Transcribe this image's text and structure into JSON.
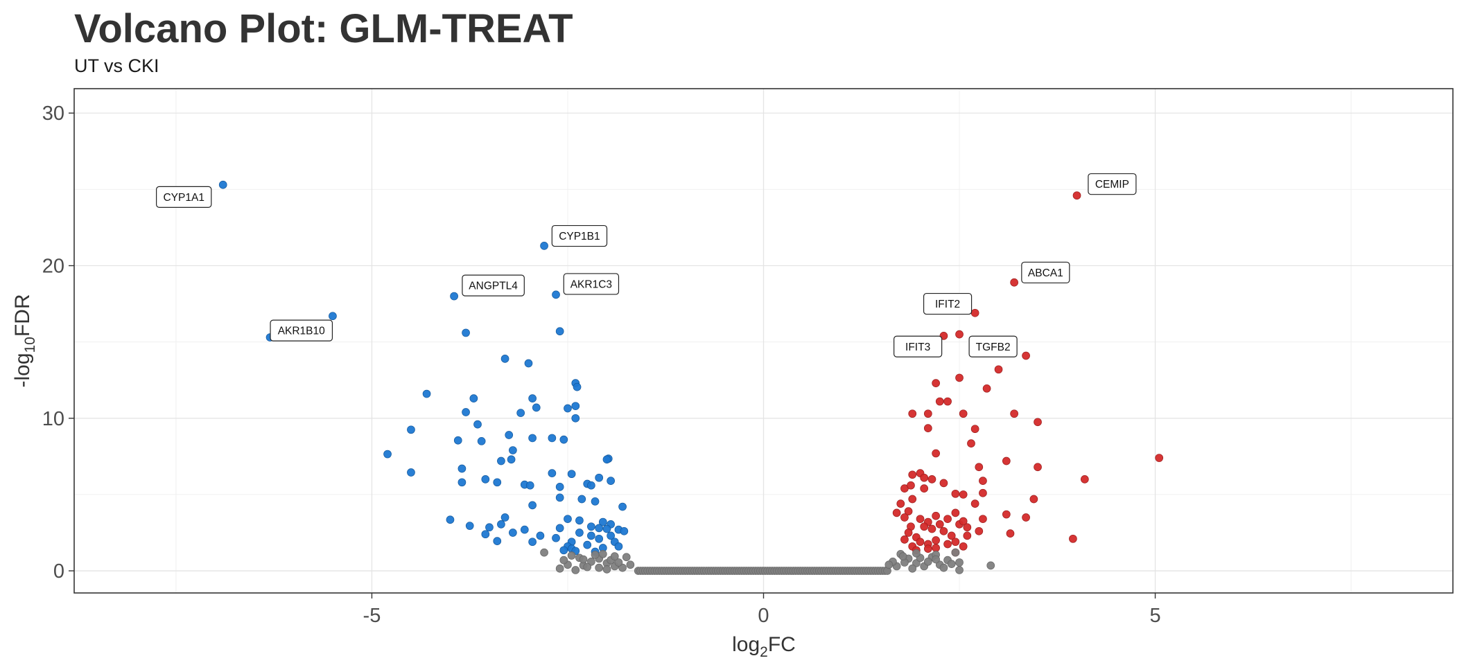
{
  "chart_data": {
    "type": "scatter",
    "title": "Volcano Plot: GLM-TREAT",
    "subtitle": "UT vs CKI",
    "xlabel_main": "log",
    "xlabel_sub": "2",
    "xlabel_tail": "FC",
    "ylabel_pre": "-log",
    "ylabel_sub": "10",
    "ylabel_tail": "FDR",
    "xlim": [
      -8.8,
      8.8
    ],
    "ylim": [
      -1.45,
      31.6
    ],
    "x_ticks": [
      -5,
      0,
      5
    ],
    "y_ticks": [
      0,
      10,
      20,
      30
    ],
    "grid": true,
    "legend": "none",
    "colors": {
      "down": "#1e78d2",
      "up": "#d42a2a",
      "ns": "#808080"
    },
    "series": [
      {
        "group": "down",
        "points": [
          [
            -6.9,
            25.3
          ],
          [
            -5.5,
            16.7
          ],
          [
            -6.3,
            15.3
          ],
          [
            -2.8,
            21.3
          ],
          [
            -2.65,
            18.1
          ],
          [
            -3.95,
            18.0
          ],
          [
            -2.6,
            15.7
          ],
          [
            -3.8,
            15.6
          ],
          [
            -3.3,
            13.9
          ],
          [
            -3.0,
            13.6
          ],
          [
            -2.4,
            12.3
          ],
          [
            -2.38,
            12.05
          ],
          [
            -4.3,
            11.6
          ],
          [
            -3.7,
            11.3
          ],
          [
            -2.95,
            11.3
          ],
          [
            -2.5,
            10.65
          ],
          [
            -3.8,
            10.4
          ],
          [
            -3.1,
            10.35
          ],
          [
            -2.9,
            10.7
          ],
          [
            -2.4,
            10.8
          ],
          [
            -3.65,
            9.6
          ],
          [
            -2.4,
            10.0
          ],
          [
            -4.5,
            9.25
          ],
          [
            -3.25,
            8.9
          ],
          [
            -2.95,
            8.7
          ],
          [
            -2.7,
            8.7
          ],
          [
            -2.55,
            8.6
          ],
          [
            -3.9,
            8.55
          ],
          [
            -3.6,
            8.5
          ],
          [
            -3.2,
            7.9
          ],
          [
            -4.8,
            7.65
          ],
          [
            -3.35,
            7.2
          ],
          [
            -3.22,
            7.3
          ],
          [
            -1.98,
            7.35
          ],
          [
            -2.0,
            7.3
          ],
          [
            -3.85,
            6.7
          ],
          [
            -4.5,
            6.45
          ],
          [
            -2.7,
            6.4
          ],
          [
            -2.45,
            6.35
          ],
          [
            -2.1,
            6.1
          ],
          [
            -3.55,
            6.0
          ],
          [
            -3.4,
            5.8
          ],
          [
            -3.85,
            5.8
          ],
          [
            -1.95,
            5.9
          ],
          [
            -3.05,
            5.65
          ],
          [
            -2.98,
            5.6
          ],
          [
            -2.6,
            5.5
          ],
          [
            -2.25,
            5.7
          ],
          [
            -2.2,
            5.6
          ],
          [
            -2.6,
            4.8
          ],
          [
            -2.32,
            4.7
          ],
          [
            -2.15,
            4.55
          ],
          [
            -1.8,
            4.2
          ],
          [
            -2.95,
            4.3
          ],
          [
            -3.3,
            3.5
          ],
          [
            -4.0,
            3.35
          ],
          [
            -2.5,
            3.4
          ],
          [
            -2.35,
            3.3
          ],
          [
            -2.05,
            3.2
          ],
          [
            -1.95,
            3.05
          ],
          [
            -3.35,
            3.05
          ],
          [
            -3.5,
            2.85
          ],
          [
            -3.75,
            2.95
          ],
          [
            -2.6,
            2.8
          ],
          [
            -2.2,
            2.9
          ],
          [
            -2.1,
            2.8
          ],
          [
            -2.0,
            2.75
          ],
          [
            -1.85,
            2.7
          ],
          [
            -1.78,
            2.6
          ],
          [
            -1.95,
            2.3
          ],
          [
            -2.35,
            2.5
          ],
          [
            -2.2,
            2.3
          ],
          [
            -3.2,
            2.5
          ],
          [
            -3.05,
            2.7
          ],
          [
            -2.85,
            2.3
          ],
          [
            -3.55,
            2.4
          ],
          [
            -2.65,
            2.15
          ],
          [
            -2.1,
            2.1
          ],
          [
            -1.9,
            1.9
          ],
          [
            -2.45,
            1.9
          ],
          [
            -2.25,
            1.7
          ],
          [
            -3.4,
            1.95
          ],
          [
            -2.95,
            1.9
          ],
          [
            -2.5,
            1.6
          ],
          [
            -2.05,
            1.5
          ],
          [
            -2.45,
            1.45
          ],
          [
            -1.85,
            1.6
          ],
          [
            -2.4,
            1.3
          ],
          [
            -2.55,
            1.35
          ],
          [
            -2.15,
            1.25
          ]
        ]
      },
      {
        "group": "up",
        "points": [
          [
            4.0,
            24.6
          ],
          [
            3.2,
            18.9
          ],
          [
            2.7,
            16.9
          ],
          [
            2.3,
            15.4
          ],
          [
            2.5,
            15.5
          ],
          [
            3.35,
            14.1
          ],
          [
            3.0,
            13.2
          ],
          [
            2.5,
            12.65
          ],
          [
            2.2,
            12.3
          ],
          [
            2.85,
            11.95
          ],
          [
            2.25,
            11.1
          ],
          [
            2.35,
            11.1
          ],
          [
            2.55,
            10.3
          ],
          [
            1.9,
            10.3
          ],
          [
            2.1,
            10.3
          ],
          [
            3.2,
            10.3
          ],
          [
            3.5,
            9.75
          ],
          [
            2.1,
            9.35
          ],
          [
            2.7,
            9.3
          ],
          [
            2.65,
            8.35
          ],
          [
            2.2,
            7.7
          ],
          [
            2.75,
            6.8
          ],
          [
            3.1,
            7.2
          ],
          [
            3.5,
            6.8
          ],
          [
            5.05,
            7.4
          ],
          [
            4.1,
            6.0
          ],
          [
            2.0,
            6.4
          ],
          [
            1.9,
            6.3
          ],
          [
            2.05,
            6.1
          ],
          [
            2.15,
            6.0
          ],
          [
            1.8,
            5.4
          ],
          [
            1.88,
            5.6
          ],
          [
            2.3,
            5.75
          ],
          [
            2.05,
            5.4
          ],
          [
            2.8,
            5.9
          ],
          [
            2.45,
            5.05
          ],
          [
            2.55,
            5.0
          ],
          [
            2.8,
            5.1
          ],
          [
            3.45,
            4.7
          ],
          [
            1.75,
            4.4
          ],
          [
            1.9,
            4.7
          ],
          [
            2.7,
            4.4
          ],
          [
            1.7,
            3.8
          ],
          [
            1.85,
            3.9
          ],
          [
            2.45,
            3.8
          ],
          [
            2.2,
            3.6
          ],
          [
            3.1,
            3.7
          ],
          [
            1.8,
            3.5
          ],
          [
            2.0,
            3.4
          ],
          [
            2.35,
            3.4
          ],
          [
            2.8,
            3.4
          ],
          [
            3.35,
            3.5
          ],
          [
            2.1,
            3.2
          ],
          [
            2.25,
            3.05
          ],
          [
            2.5,
            3.05
          ],
          [
            2.55,
            3.25
          ],
          [
            1.88,
            2.9
          ],
          [
            2.05,
            2.9
          ],
          [
            2.15,
            2.75
          ],
          [
            2.6,
            2.85
          ],
          [
            1.85,
            2.5
          ],
          [
            2.3,
            2.6
          ],
          [
            2.75,
            2.6
          ],
          [
            1.95,
            2.2
          ],
          [
            2.4,
            2.3
          ],
          [
            2.6,
            2.3
          ],
          [
            3.15,
            2.45
          ],
          [
            3.95,
            2.1
          ],
          [
            1.8,
            2.05
          ],
          [
            2.0,
            1.9
          ],
          [
            2.2,
            2.0
          ],
          [
            2.45,
            1.9
          ],
          [
            2.1,
            1.75
          ],
          [
            2.35,
            1.75
          ],
          [
            1.9,
            1.6
          ],
          [
            2.55,
            1.6
          ],
          [
            2.2,
            1.5
          ],
          [
            1.95,
            1.35
          ],
          [
            2.1,
            1.45
          ],
          [
            2.45,
            1.2
          ]
        ]
      },
      {
        "group": "ns",
        "points": [
          [
            -2.8,
            1.2
          ],
          [
            -2.5,
            0.4
          ],
          [
            -2.3,
            0.35
          ],
          [
            -2.1,
            0.8
          ],
          [
            -2.0,
            0.5
          ],
          [
            -1.9,
            0.3
          ],
          [
            -2.35,
            0.85
          ],
          [
            -2.2,
            0.6
          ],
          [
            -1.8,
            0.2
          ],
          [
            -2.6,
            0.15
          ],
          [
            -1.75,
            0.9
          ],
          [
            -2.45,
            1.0
          ],
          [
            -2.05,
            1.1
          ],
          [
            -1.95,
            0.7
          ],
          [
            -2.25,
            0.25
          ],
          [
            -1.85,
            0.55
          ],
          [
            -2.15,
            1.05
          ],
          [
            -2.55,
            0.7
          ],
          [
            -1.7,
            0.4
          ],
          [
            -2.4,
            0.05
          ],
          [
            -2.0,
            0.1
          ],
          [
            -1.9,
            0.95
          ],
          [
            -2.3,
            0.75
          ],
          [
            -2.1,
            0.2
          ],
          [
            1.75,
            1.1
          ],
          [
            1.85,
            0.8
          ],
          [
            1.95,
            0.5
          ],
          [
            2.05,
            0.3
          ],
          [
            1.8,
            0.55
          ],
          [
            2.15,
            0.9
          ],
          [
            2.25,
            0.4
          ],
          [
            2.35,
            0.7
          ],
          [
            1.7,
            0.3
          ],
          [
            1.9,
            0.15
          ],
          [
            2.0,
            0.85
          ],
          [
            2.2,
            1.05
          ],
          [
            2.3,
            0.2
          ],
          [
            2.45,
            1.2
          ],
          [
            2.5,
            0.55
          ],
          [
            1.65,
            0.6
          ],
          [
            2.1,
            0.6
          ],
          [
            1.6,
            0.4
          ],
          [
            2.5,
            0.05
          ],
          [
            2.9,
            0.35
          ],
          [
            1.78,
            0.95
          ],
          [
            2.4,
            0.45
          ],
          [
            1.95,
            1.15
          ],
          [
            2.2,
            0.75
          ]
        ]
      }
    ],
    "ns_band": {
      "x_from": -1.6,
      "x_to": 1.6,
      "y": 0.0
    },
    "labels": [
      {
        "text": "CYP1A1",
        "x": -6.9,
        "y": 25.3,
        "lx": -7.4,
        "ly": 24.5
      },
      {
        "text": "CYP1B1",
        "x": -2.8,
        "y": 21.3,
        "lx": -2.35,
        "ly": 21.95
      },
      {
        "text": "ANGPTL4",
        "x": -3.95,
        "y": 18.0,
        "lx": -3.45,
        "ly": 18.7
      },
      {
        "text": "AKR1C3",
        "x": -2.65,
        "y": 18.1,
        "lx": -2.2,
        "ly": 18.8
      },
      {
        "text": "AKR1B10",
        "x": -6.3,
        "y": 15.3,
        "lx": -5.9,
        "ly": 15.75
      },
      {
        "text": "CEMIP",
        "x": 4.0,
        "y": 24.6,
        "lx": 4.45,
        "ly": 25.35
      },
      {
        "text": "ABCA1",
        "x": 3.2,
        "y": 18.9,
        "lx": 3.6,
        "ly": 19.55
      },
      {
        "text": "IFIT2",
        "x": 2.3,
        "y": 15.4,
        "lx": 2.35,
        "ly": 17.5
      },
      {
        "text": "IFIT3",
        "x": 2.0,
        "y": 13.9,
        "lx": 1.97,
        "ly": 14.7
      },
      {
        "text": "TGFB2",
        "x": 2.6,
        "y": 13.9,
        "lx": 2.93,
        "ly": 14.7
      }
    ]
  }
}
